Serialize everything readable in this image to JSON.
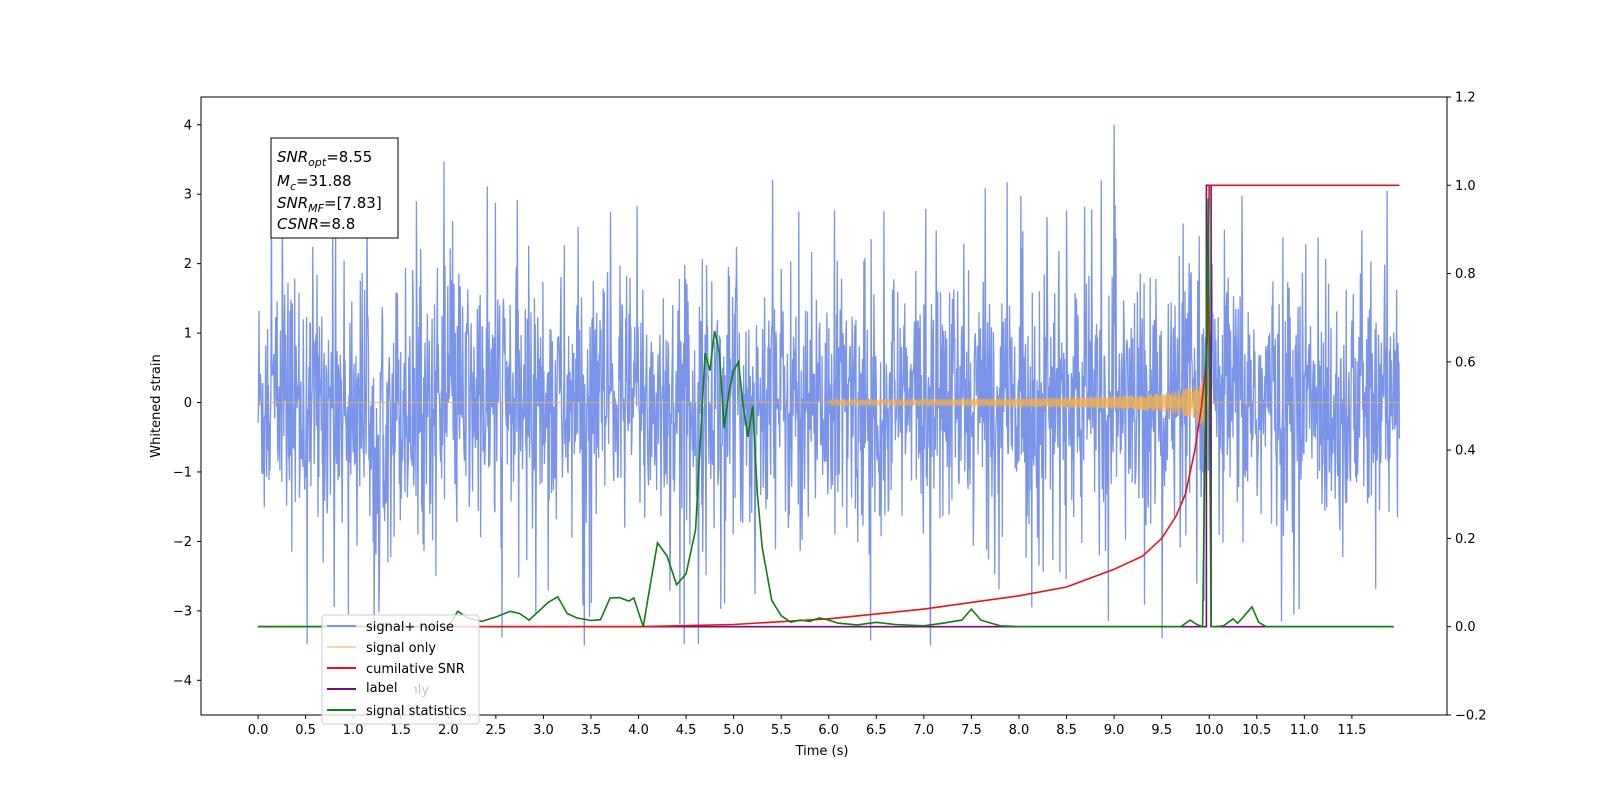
{
  "chart_data": {
    "type": "line",
    "title": "",
    "xlabel": "Time (s)",
    "ylabel": "Whitened strain",
    "xlim": [
      -0.6,
      12.5
    ],
    "ylim": [
      -4.5,
      4.4
    ],
    "y2lim": [
      -0.2,
      1.2
    ],
    "x_ticks": [
      "0.0",
      "0.5",
      "1.0",
      "1.5",
      "2.0",
      "2.5",
      "3.0",
      "3.5",
      "4.0",
      "4.5",
      "5.0",
      "5.5",
      "6.0",
      "6.5",
      "7.0",
      "7.5",
      "8.0",
      "8.5",
      "9.0",
      "9.5",
      "10.0",
      "10.5",
      "11.0",
      "11.5"
    ],
    "y_ticks": [
      "4",
      "3",
      "2",
      "1",
      "0",
      "−1",
      "−2",
      "−3",
      "−4"
    ],
    "y2_ticks": [
      "1.2",
      "1.0",
      "0.8",
      "0.6",
      "0.4",
      "0.2",
      "0.0",
      "−0.2"
    ],
    "grid": false,
    "legend_position": "bottom-left",
    "annotation": {
      "snr_opt": {
        "sym": "SNR",
        "sub": "opt",
        "val": "=8.55"
      },
      "mc": {
        "sym": "M",
        "sub": "c",
        "val": "=31.88"
      },
      "snr_mf": {
        "sym": "SNR",
        "sub": "MF",
        "val": "=[7.83]"
      },
      "csnr": {
        "sym": "CSNR",
        "sub": "",
        "val": "=8.8"
      }
    },
    "series": [
      {
        "name": "signal+ noise",
        "color": "#7994e8",
        "axis": "left",
        "x_range": [
          0,
          12
        ],
        "amplitude_sigma": 1.0,
        "peak_value": 4.0
      },
      {
        "name": "signal only",
        "color": "#f5b04a",
        "axis": "left",
        "x_range": [
          0,
          12
        ],
        "chirp_end": 10.0,
        "peak_value": 0.58
      },
      {
        "name": "cumilative SNR",
        "color": "#ee1111",
        "axis": "right",
        "x": [
          0.0,
          4.0,
          5.0,
          6.0,
          7.0,
          8.0,
          8.5,
          9.0,
          9.3,
          9.5,
          9.65,
          9.75,
          9.85,
          9.92,
          9.96,
          9.98,
          10.0,
          10.05,
          12.0
        ],
        "values": [
          0.0,
          0.0,
          0.005,
          0.018,
          0.04,
          0.07,
          0.09,
          0.13,
          0.16,
          0.2,
          0.25,
          0.3,
          0.4,
          0.5,
          0.58,
          0.65,
          1.0,
          1.0,
          1.0
        ]
      },
      {
        "name": "label",
        "color": "#7d0a7d",
        "axis": "right",
        "x": [
          0.0,
          9.97,
          9.97,
          10.02,
          10.02,
          11.94
        ],
        "values": [
          0.0,
          0.0,
          1.0,
          1.0,
          0.0,
          0.0
        ]
      },
      {
        "name": "label only",
        "color": "#7d0a7d",
        "axis": "right",
        "x": [],
        "values": []
      },
      {
        "name": "signal statistics",
        "color": "#0f7f0f",
        "axis": "right",
        "x": [
          0.0,
          2.0,
          2.1,
          2.2,
          2.35,
          2.5,
          2.65,
          2.75,
          2.85,
          2.95,
          3.05,
          3.15,
          3.25,
          3.35,
          3.5,
          3.6,
          3.7,
          3.8,
          3.9,
          3.95,
          4.05,
          4.1,
          4.2,
          4.3,
          4.4,
          4.5,
          4.6,
          4.7,
          4.75,
          4.8,
          4.85,
          4.9,
          4.95,
          5.0,
          5.05,
          5.1,
          5.15,
          5.2,
          5.25,
          5.3,
          5.4,
          5.5,
          5.6,
          5.7,
          5.8,
          5.9,
          6.0,
          6.1,
          6.3,
          6.5,
          6.7,
          7.0,
          7.2,
          7.4,
          7.5,
          7.6,
          7.8,
          8.0,
          9.5,
          9.7,
          9.8,
          9.87,
          9.93,
          9.99,
          10.02,
          10.06,
          10.15,
          10.25,
          10.3,
          10.35,
          10.45,
          10.52,
          10.6,
          11.94
        ],
        "values": [
          0.0,
          0.0,
          0.035,
          0.02,
          0.012,
          0.022,
          0.035,
          0.03,
          0.015,
          0.035,
          0.055,
          0.068,
          0.03,
          0.02,
          0.014,
          0.016,
          0.065,
          0.066,
          0.058,
          0.065,
          0.0,
          0.065,
          0.19,
          0.16,
          0.095,
          0.12,
          0.22,
          0.62,
          0.58,
          0.67,
          0.62,
          0.45,
          0.53,
          0.58,
          0.6,
          0.5,
          0.43,
          0.5,
          0.3,
          0.18,
          0.06,
          0.025,
          0.01,
          0.015,
          0.012,
          0.02,
          0.015,
          0.008,
          0.004,
          0.01,
          0.005,
          0.002,
          0.008,
          0.015,
          0.04,
          0.015,
          0.002,
          0.0,
          0.0,
          0.0,
          0.015,
          0.005,
          0.0,
          0.97,
          0.0,
          0.0,
          0.002,
          0.018,
          0.008,
          0.02,
          0.045,
          0.01,
          0.0,
          0.0
        ]
      }
    ]
  }
}
